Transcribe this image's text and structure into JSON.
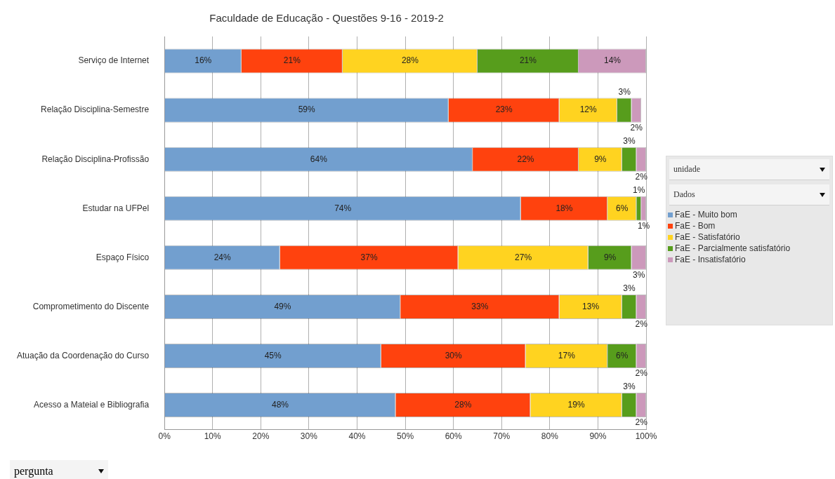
{
  "chart_data": {
    "type": "bar",
    "orientation": "horizontal",
    "stacked": true,
    "title": "Faculdade de Educação - Questões 9-16 - 2019-2",
    "categories": [
      "Serviço de Internet",
      "Relação Disciplina-Semestre",
      "Relação Disciplina-Profissão",
      "Estudar na UFPel",
      "Espaço Físico",
      "Comprometimento do Discente",
      "Atuação da Coordenação do Curso",
      "Acesso a Mateial e Bibliografia"
    ],
    "series": [
      {
        "name": "FaE - Muito bom",
        "color": "#729fcf",
        "values": [
          16,
          59,
          64,
          74,
          24,
          49,
          45,
          48
        ],
        "value_labels": [
          "16%",
          "59%",
          "64%",
          "74%",
          "24%",
          "49%",
          "45%",
          "48%"
        ]
      },
      {
        "name": "FaE - Bom",
        "color": "#ff420e",
        "values": [
          21,
          23,
          22,
          18,
          37,
          33,
          30,
          28
        ],
        "value_labels": [
          "21%",
          "23%",
          "22%",
          "18%",
          "37%",
          "33%",
          "30%",
          "28%"
        ]
      },
      {
        "name": "FaE - Satisfatório",
        "color": "#ffd320",
        "values": [
          28,
          12,
          9,
          6,
          27,
          13,
          17,
          19
        ],
        "value_labels": [
          "28%",
          "12%",
          "9%",
          "6%",
          "27%",
          "13%",
          "17%",
          "19%"
        ]
      },
      {
        "name": "FaE - Parcialmente satisfatório",
        "color": "#579d1c",
        "values": [
          21,
          3,
          3,
          1,
          9,
          3,
          6,
          3
        ],
        "value_labels": [
          "21%",
          "3%",
          "3%",
          "1%",
          "9%",
          "3%",
          "6%",
          "3%"
        ]
      },
      {
        "name": "FaE - Insatisfatório",
        "color": "#cc99bb",
        "values": [
          14,
          2,
          2,
          1,
          3,
          2,
          2,
          2
        ],
        "value_labels": [
          "14%",
          "2%",
          "2%",
          "1%",
          "3%",
          "2%",
          "2%",
          "2%"
        ]
      }
    ],
    "xlim": [
      0,
      100
    ],
    "xticks": [
      {
        "value": 0,
        "label": "0%"
      },
      {
        "value": 10,
        "label": "10%"
      },
      {
        "value": 20,
        "label": "20%"
      },
      {
        "value": 30,
        "label": "30%"
      },
      {
        "value": 40,
        "label": "40%"
      },
      {
        "value": 50,
        "label": "50%"
      },
      {
        "value": 60,
        "label": "60%"
      },
      {
        "value": 70,
        "label": "70%"
      },
      {
        "value": 80,
        "label": "80%"
      },
      {
        "value": 90,
        "label": "90%"
      },
      {
        "value": 100,
        "label": "100%"
      }
    ],
    "grid": "x",
    "legend": "right",
    "annotations": [
      "unidade",
      "Dados",
      "pergunta"
    ]
  }
}
